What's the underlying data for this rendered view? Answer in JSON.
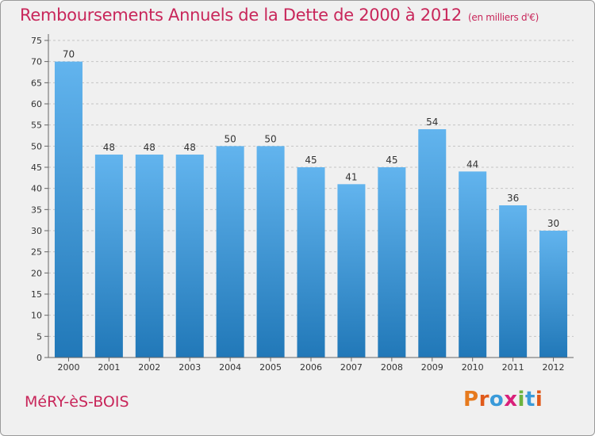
{
  "title": "Remboursements Annuels de la Dette de 2000 à 2012",
  "unit_note": "(en milliers d'€)",
  "town": "MéRY-èS-BOIS",
  "logo": {
    "text": "Proxiti",
    "colors": [
      "#e67a1e",
      "#e05a1a",
      "#3a9ad9",
      "#d9207a",
      "#6cb33f",
      "#3a9ad9",
      "#e05a1a"
    ]
  },
  "colors": {
    "title": "#c8265a",
    "bar_light": "#62b4ee",
    "bar_dark": "#2178b8",
    "background": "#f0f0f0"
  },
  "chart_data": {
    "type": "bar",
    "categories": [
      "2000",
      "2001",
      "2002",
      "2003",
      "2004",
      "2005",
      "2006",
      "2007",
      "2008",
      "2009",
      "2010",
      "2011",
      "2012"
    ],
    "values": [
      70,
      48,
      48,
      48,
      50,
      50,
      45,
      41,
      45,
      54,
      44,
      36,
      30
    ],
    "ylim": [
      0,
      75
    ],
    "yticks": [
      0,
      5,
      10,
      15,
      20,
      25,
      30,
      35,
      40,
      45,
      50,
      55,
      60,
      65,
      70,
      75
    ],
    "grid": "horizontal dashed",
    "data_labels": true
  }
}
